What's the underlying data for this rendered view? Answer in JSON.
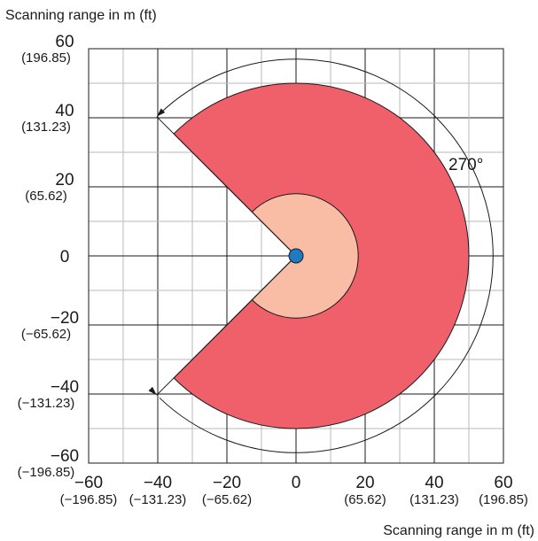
{
  "titles": {
    "y_axis": "Scanning range in m (ft)",
    "x_axis": "Scanning range in m (ft)"
  },
  "angle_label": "270°",
  "y_ticks": [
    {
      "m": "60",
      "ft": "(196.85)"
    },
    {
      "m": "40",
      "ft": "(131.23)"
    },
    {
      "m": "20",
      "ft": "(65.62)"
    },
    {
      "m": "0",
      "ft": ""
    },
    {
      "m": "−20",
      "ft": "(−65.62)"
    },
    {
      "m": "−40",
      "ft": "(−131.23)"
    },
    {
      "m": "−60",
      "ft": "(−196.85)"
    }
  ],
  "x_ticks": [
    {
      "m": "−60",
      "ft": "(−196.85)"
    },
    {
      "m": "−40",
      "ft": "(−131.23)"
    },
    {
      "m": "−20",
      "ft": "(−65.62)"
    },
    {
      "m": "0",
      "ft": ""
    },
    {
      "m": "20",
      "ft": "(65.62)"
    },
    {
      "m": "40",
      "ft": "(131.23)"
    },
    {
      "m": "60",
      "ft": "(196.85)"
    }
  ],
  "diagram": {
    "outer_radius_m": 50,
    "inner_radius_m": 18,
    "scan_angle_deg": 270,
    "axis_range_m": [
      -60,
      60
    ],
    "colors": {
      "outer_field": "#f0606a",
      "inner_field": "#f9bda6",
      "sensor": "#1f7ac4",
      "grid_major": "#1a1a1a",
      "grid_minor": "#b9b9b9"
    }
  }
}
